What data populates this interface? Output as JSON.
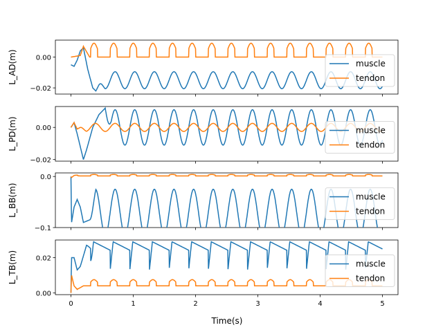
{
  "chart_data": [
    {
      "type": "line",
      "ylabel": "L_AD(m)",
      "ylim": [
        -0.024,
        0.011
      ],
      "yticks": [
        {
          "v": 0.0,
          "label": "0.00"
        },
        {
          "v": -0.02,
          "label": "−0.02"
        }
      ],
      "legend": "right",
      "series": [
        {
          "name": "muscle",
          "color": "#1f77b4",
          "base": -0.015,
          "amp": 0.0055,
          "shape": "sine",
          "start": 0.0,
          "start_y": 0.0,
          "transient": [
            [
              0.0,
              -0.005
            ],
            [
              0.05,
              -0.006
            ],
            [
              0.1,
              -0.002
            ],
            [
              0.15,
              0.004
            ],
            [
              0.2,
              0.006
            ],
            [
              0.27,
              -0.008
            ],
            [
              0.35,
              -0.02
            ],
            [
              0.4,
              -0.022
            ],
            [
              0.45,
              -0.018
            ]
          ]
        },
        {
          "name": "tendon",
          "color": "#ff7f0e",
          "base": 0.0,
          "amp": 0.009,
          "shape": "pulse",
          "start": 0.0,
          "start_y": 0.0,
          "transient": [
            [
              0.0,
              0.0
            ],
            [
              0.15,
              0.001
            ],
            [
              0.2,
              0.007
            ]
          ]
        }
      ]
    },
    {
      "type": "line",
      "ylabel": "L_PD(m)",
      "ylim": [
        -0.021,
        0.013
      ],
      "yticks": [
        {
          "v": 0.0,
          "label": "0.00"
        },
        {
          "v": -0.02,
          "label": "−0.02"
        }
      ],
      "legend": "right",
      "series": [
        {
          "name": "muscle",
          "color": "#1f77b4",
          "base": 0.0,
          "amp": 0.011,
          "shape": "sine",
          "start": 0.0,
          "start_y": 0.0,
          "transient": [
            [
              0.0,
              0.0
            ],
            [
              0.05,
              0.003
            ],
            [
              0.1,
              -0.004
            ],
            [
              0.15,
              -0.012
            ],
            [
              0.2,
              -0.02
            ],
            [
              0.25,
              -0.014
            ],
            [
              0.35,
              0.0
            ],
            [
              0.45,
              0.008
            ],
            [
              0.55,
              0.012
            ]
          ]
        },
        {
          "name": "tendon",
          "color": "#ff7f0e",
          "base": 0.0,
          "amp": 0.0025,
          "shape": "sine",
          "start": 0.0,
          "start_y": 0.0,
          "transient": [
            [
              0.0,
              0.0
            ],
            [
              0.05,
              0.003
            ],
            [
              0.1,
              -0.001
            ],
            [
              0.15,
              0.0
            ]
          ]
        }
      ]
    },
    {
      "type": "line",
      "ylabel": "L_BB(m)",
      "ylim": [
        -0.1,
        0.007
      ],
      "yticks": [
        {
          "v": 0.0,
          "label": "0.0"
        },
        {
          "v": -0.1,
          "label": "−0.1"
        }
      ],
      "legend": "right",
      "series": [
        {
          "name": "muscle",
          "color": "#1f77b4",
          "base": -0.07,
          "amp": 0.045,
          "shape": "sine",
          "start": 0.0,
          "start_y": 0.0,
          "transient": [
            [
              0.0,
              0.0
            ],
            [
              0.01,
              -0.09
            ],
            [
              0.05,
              -0.06
            ],
            [
              0.1,
              -0.045
            ],
            [
              0.15,
              -0.06
            ],
            [
              0.2,
              -0.09
            ],
            [
              0.3,
              -0.085
            ]
          ]
        },
        {
          "name": "tendon",
          "color": "#ff7f0e",
          "base": 0.001,
          "amp": 0.003,
          "shape": "pulse",
          "start": 0.0,
          "start_y": 0.0,
          "transient": [
            [
              0.0,
              0.0
            ],
            [
              0.01,
              -0.002
            ],
            [
              0.05,
              0.002
            ]
          ]
        }
      ]
    },
    {
      "type": "line",
      "ylabel": "L_TB(m)",
      "ylim": [
        -0.001,
        0.03
      ],
      "yticks": [
        {
          "v": 0.02,
          "label": "0.02"
        },
        {
          "v": 0.0,
          "label": "0.00"
        }
      ],
      "legend": "right",
      "xlabel": "Time(s)",
      "xticks": [
        0,
        1,
        2,
        3,
        4,
        5
      ],
      "xlim": [
        -0.25,
        5.25
      ],
      "series": [
        {
          "name": "muscle",
          "color": "#1f77b4",
          "base": 0.021,
          "amp": 0.008,
          "shape": "saw",
          "start": 0.0,
          "start_y": 0.0,
          "transient": [
            [
              0.0,
              0.0
            ],
            [
              0.01,
              0.02
            ],
            [
              0.05,
              0.02
            ],
            [
              0.1,
              0.013
            ],
            [
              0.15,
              0.015
            ],
            [
              0.25,
              0.027
            ]
          ]
        },
        {
          "name": "tendon",
          "color": "#ff7f0e",
          "base": 0.004,
          "amp": 0.0035,
          "shape": "pulse",
          "start": 0.0,
          "start_y": 0.0,
          "transient": [
            [
              0.0,
              0.0
            ],
            [
              0.01,
              0.01
            ],
            [
              0.05,
              0.004
            ],
            [
              0.1,
              0.002
            ]
          ]
        }
      ]
    }
  ],
  "x_shared": {
    "xmin": 0,
    "xmax": 5,
    "period": 0.315
  }
}
